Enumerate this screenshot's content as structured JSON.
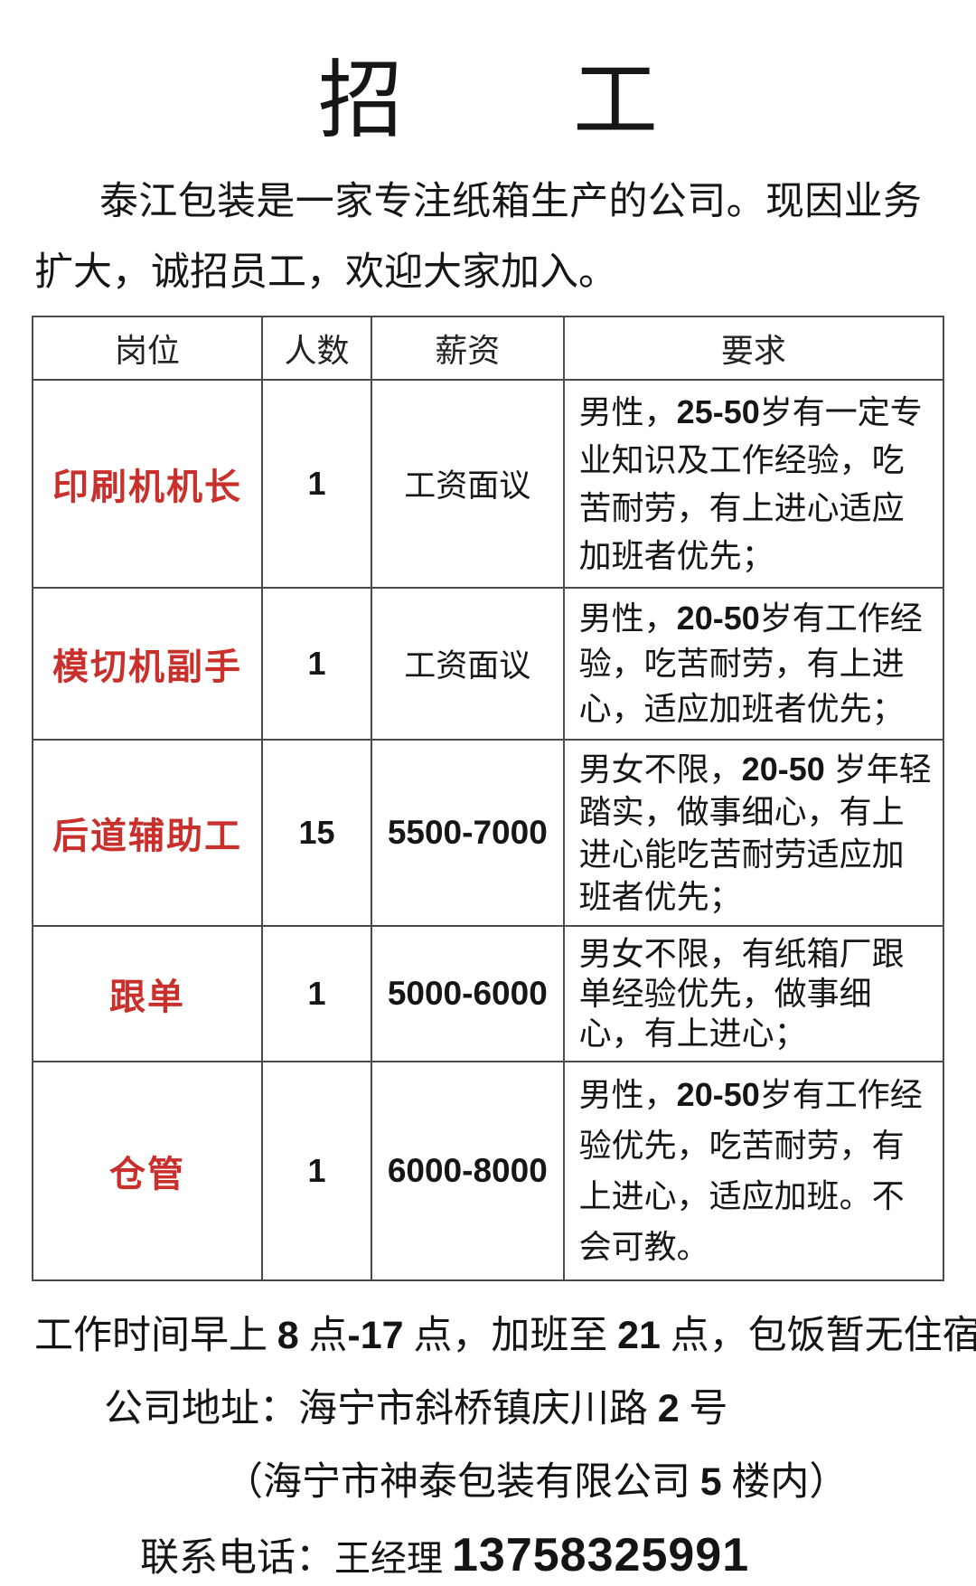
{
  "page": {
    "background": "#ffffff",
    "text_color": "#1c1c1c",
    "accent_red": "#c9302c",
    "border_color": "#4a4a4a"
  },
  "title": "招　　工",
  "intro": "泰江包装是一家专注纸箱生产的公司。现因业务扩大，诚招员工，欢迎大家加入。",
  "table": {
    "headers": [
      "岗位",
      "人数",
      "薪资",
      "要求"
    ],
    "rows": [
      {
        "position": "印刷机机长",
        "count": "1",
        "salary": "工资面议",
        "salary_bold": false,
        "requirement": [
          {
            "t": "男性，"
          },
          {
            "t": "25-50",
            "b": true
          },
          {
            "t": "岁有一定专业知识及工作经验，吃苦耐劳，有上进心适应加班者优先；"
          }
        ]
      },
      {
        "position": "模切机副手",
        "count": "1",
        "salary": "工资面议",
        "salary_bold": false,
        "requirement": [
          {
            "t": "男性，"
          },
          {
            "t": "20-50",
            "b": true
          },
          {
            "t": "岁有工作经验，吃苦耐劳，有上进心，适应加班者优先；"
          }
        ]
      },
      {
        "position": "后道辅助工",
        "count": "15",
        "salary": "5500-7000",
        "salary_bold": true,
        "requirement": [
          {
            "t": "男女不限，"
          },
          {
            "t": "20-50",
            "b": true
          },
          {
            "t": " 岁年轻踏实，做事细心，有上进心能吃苦耐劳适应加班者优先；"
          }
        ]
      },
      {
        "position": "跟单",
        "count": "1",
        "salary": "5000-6000",
        "salary_bold": true,
        "requirement": [
          {
            "t": "男女不限，有纸箱厂跟单经验优先，做事细心，有上进心；"
          }
        ]
      },
      {
        "position": "仓管",
        "count": "1",
        "salary": "6000-8000",
        "salary_bold": true,
        "requirement": [
          {
            "t": "男性，"
          },
          {
            "t": "20-50",
            "b": true
          },
          {
            "t": "岁有工作经验优先，吃苦耐劳，有上进心，适应加班。不会可教。"
          }
        ]
      }
    ]
  },
  "footer": {
    "lines": [
      {
        "name": "work-hours",
        "segments": [
          {
            "t": "工作时间早上 "
          },
          {
            "t": "8",
            "b": true
          },
          {
            "t": " 点"
          },
          {
            "t": "-17",
            "b": true
          },
          {
            "t": " 点，加班至 "
          },
          {
            "t": "21",
            "b": true
          },
          {
            "t": " 点，包饭暂无住宿，"
          }
        ]
      },
      {
        "name": "company-address",
        "segments": [
          {
            "t": "公司地址：海宁市斜桥镇庆川路 "
          },
          {
            "t": "2",
            "b": true
          },
          {
            "t": " 号"
          }
        ]
      },
      {
        "name": "address-note",
        "segments": [
          {
            "t": "（海宁市神泰包装有限公司 "
          },
          {
            "t": "5",
            "b": true
          },
          {
            "t": " 楼内）"
          }
        ]
      },
      {
        "name": "contact-phone",
        "segments": [
          {
            "t": "联系电话："
          },
          {
            "t": "王经理 ",
            "cls": "manager"
          },
          {
            "t": "13758325991",
            "b": true,
            "cls": "phone"
          }
        ]
      }
    ]
  }
}
